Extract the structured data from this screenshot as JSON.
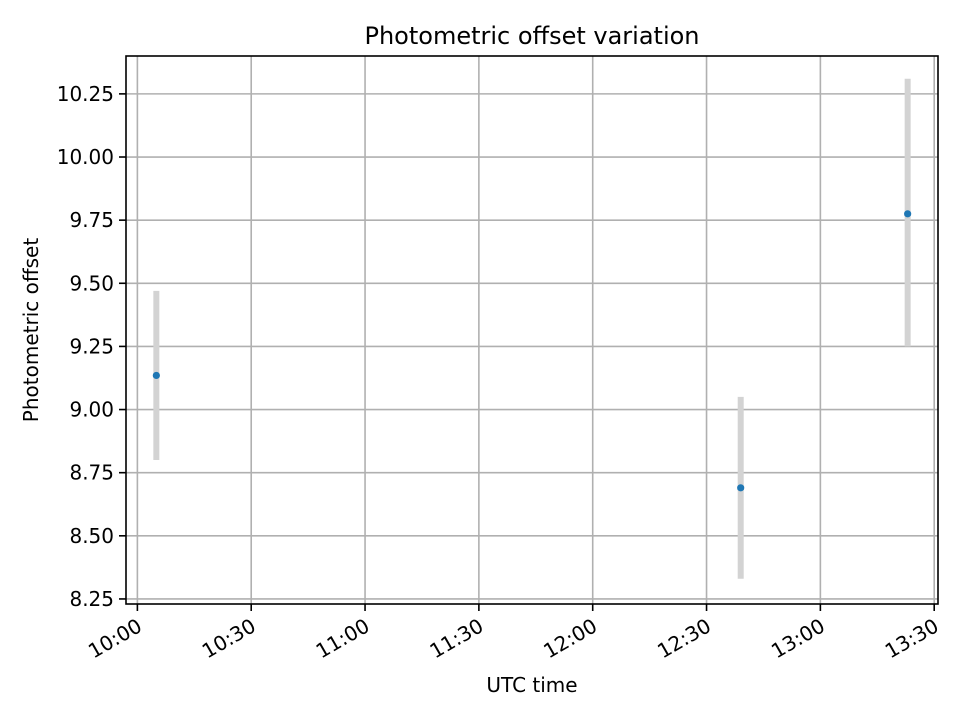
{
  "chart_data": {
    "type": "scatter",
    "title": "Photometric offset variation",
    "xlabel": "UTC time",
    "ylabel": "Photometric offset",
    "x_ticks": [
      "10:00",
      "10:30",
      "11:00",
      "11:30",
      "12:00",
      "12:30",
      "13:00",
      "13:30"
    ],
    "y_ticks": [
      "8.25",
      "8.50",
      "8.75",
      "9.00",
      "9.25",
      "9.50",
      "9.75",
      "10.00",
      "10.25"
    ],
    "xlim": [
      "09:57",
      "13:31"
    ],
    "ylim": [
      8.23,
      10.4
    ],
    "grid": true,
    "marker_color": "#1f77b4",
    "errorbar_color": "#d3d3d3",
    "points": [
      {
        "x": "10:05",
        "y": 9.135,
        "y_low": 8.8,
        "y_high": 9.47
      },
      {
        "x": "12:39",
        "y": 8.69,
        "y_low": 8.33,
        "y_high": 9.05
      },
      {
        "x": "13:23",
        "y": 9.775,
        "y_low": 9.25,
        "y_high": 10.31
      }
    ]
  }
}
